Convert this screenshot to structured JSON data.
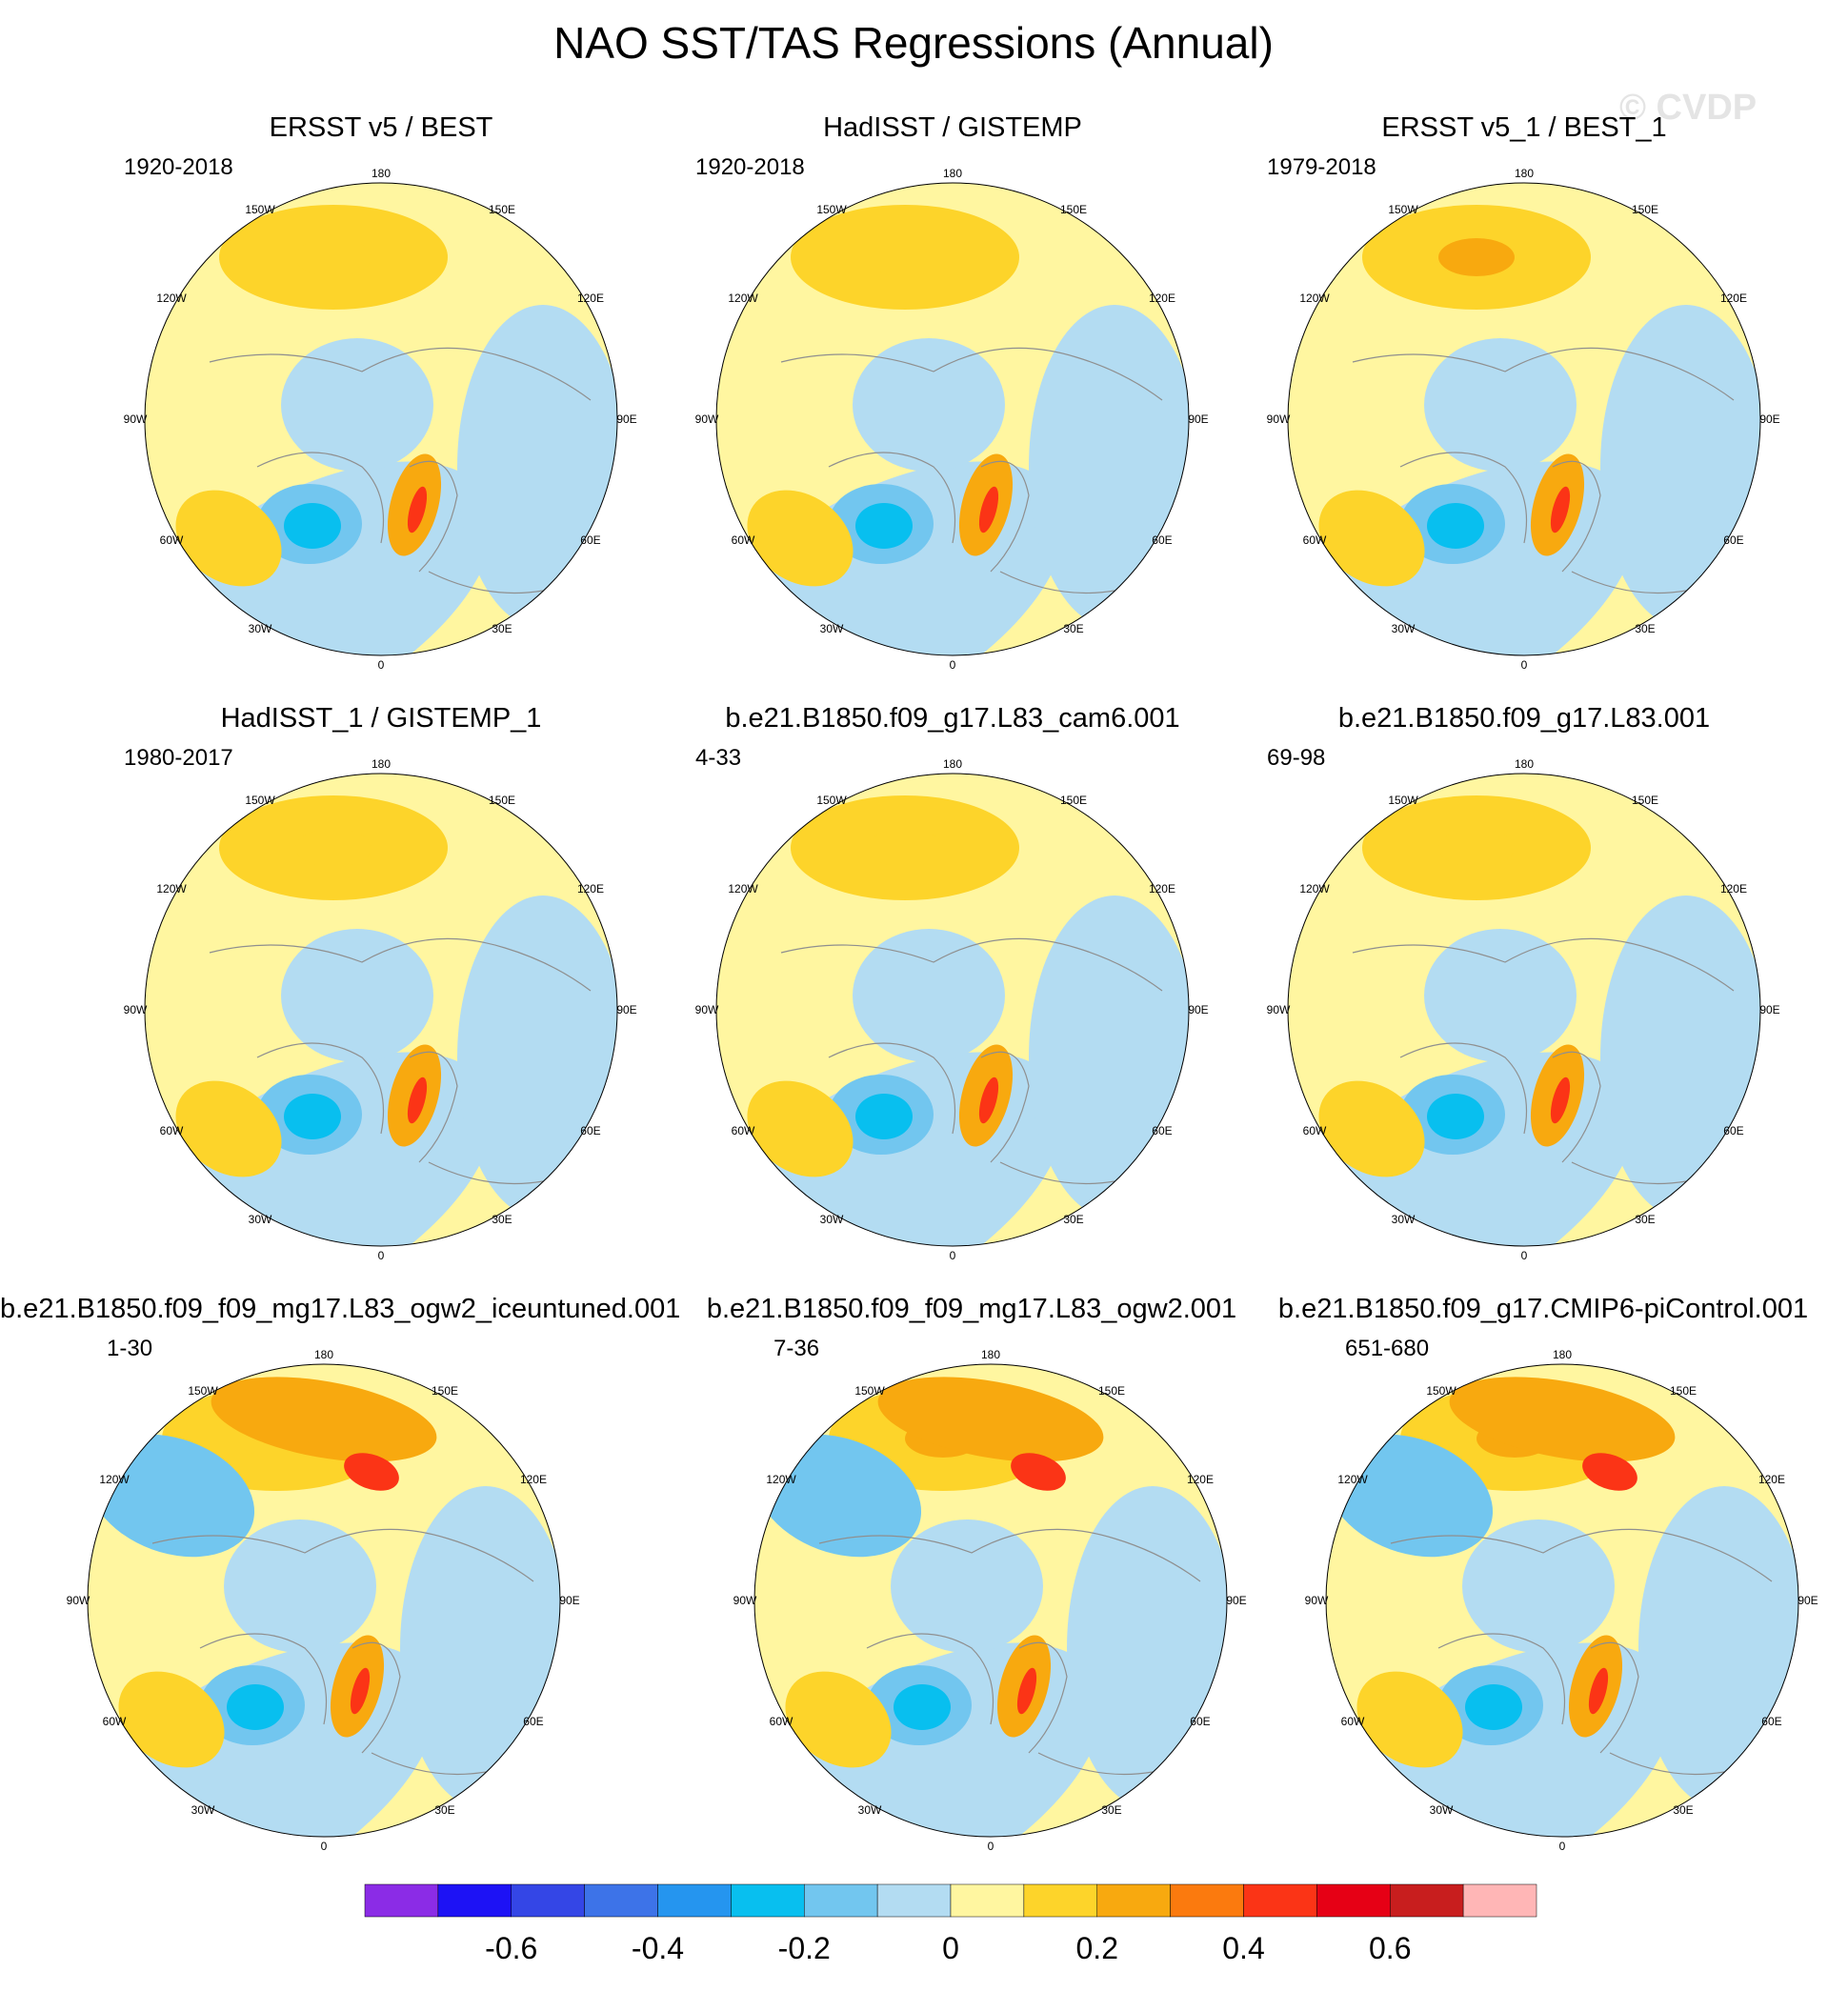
{
  "title": "NAO SST/TAS Regressions (Annual)",
  "watermark": "© CVDP",
  "chart_data": {
    "type": "heatmap",
    "projection": "north polar stereographic",
    "title": "NAO SST/TAS Regressions (Annual)",
    "longitude_labels": [
      "180",
      "150E",
      "120E",
      "90E",
      "60E",
      "30E",
      "0",
      "30W",
      "60W",
      "90W",
      "120W",
      "150W"
    ],
    "colorbar": {
      "levels": [
        -0.7,
        -0.6,
        -0.5,
        -0.4,
        -0.3,
        -0.2,
        -0.1,
        0,
        0.1,
        0.2,
        0.3,
        0.4,
        0.5,
        0.6,
        0.7
      ],
      "colors": [
        "#8b2ce6",
        "#1d12f5",
        "#3446e6",
        "#3d73e8",
        "#2595ef",
        "#08bfef",
        "#72c6ef",
        "#b3dcf2",
        "#fff6a0",
        "#fdd42a",
        "#f8a90f",
        "#fb7a0e",
        "#fb3416",
        "#e60015",
        "#c81e1e",
        "#ffb6b6"
      ],
      "tick_labels": [
        "-0.6",
        "-0.4",
        "-0.2",
        "0",
        "0.2",
        "0.4",
        "0.6"
      ],
      "tick_values": [
        -0.6,
        -0.4,
        -0.2,
        0,
        0.2,
        0.4,
        0.6
      ]
    },
    "panels": [
      {
        "title": "ERSST v5 / BEST",
        "years": "1920-2018"
      },
      {
        "title": "HadISST / GISTEMP",
        "years": "1920-2018"
      },
      {
        "title": "ERSST v5_1 / BEST_1",
        "years": "1979-2018"
      },
      {
        "title": "HadISST_1 / GISTEMP_1",
        "years": "1980-2017"
      },
      {
        "title": "b.e21.B1850.f09_g17.L83_cam6.001",
        "years": "4-33"
      },
      {
        "title": "b.e21.B1850.f09_g17.L83.001",
        "years": "69-98"
      },
      {
        "title": "b.e21.B1850.f09_f09_mg17.L83_ogw2_iceuntuned.001",
        "years": "1-30"
      },
      {
        "title": "b.e21.B1850.f09_f09_mg17.L83_ogw2.001",
        "years": "7-36"
      },
      {
        "title": "b.e21.B1850.f09_g17.CMIP6-piControl.001",
        "years": "651-680"
      }
    ]
  }
}
